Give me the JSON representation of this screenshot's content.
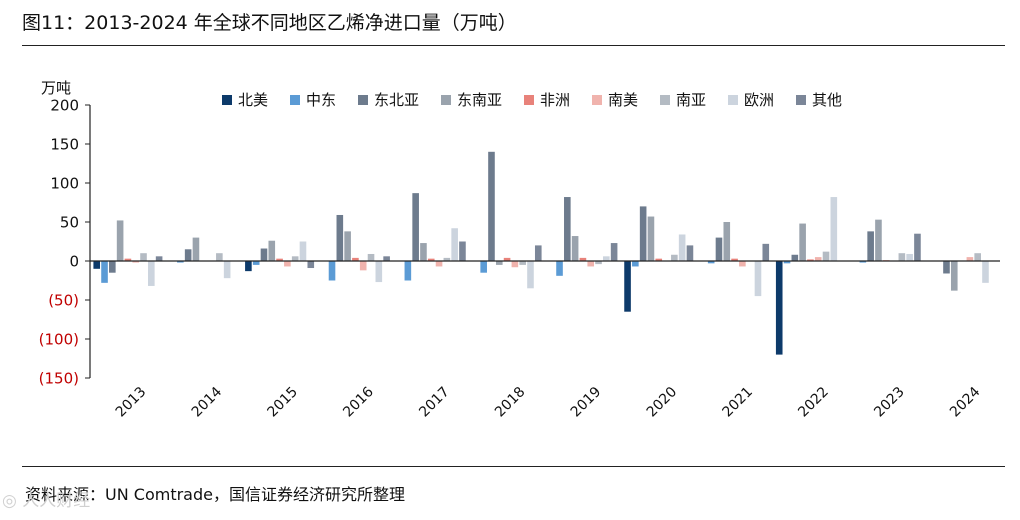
{
  "figure": {
    "title": "图11：2013-2024 年全球不同地区乙烯净进口量（万吨）",
    "source": "资料来源：UN Comtrade，国信证券经济研究所整理",
    "watermark": "◎ 人人财经"
  },
  "chart_data": {
    "type": "bar",
    "title": "2013-2024 年全球不同地区乙烯净进口量（万吨）",
    "ylabel": "万吨",
    "xlabel": "",
    "ylim": [
      -150,
      200
    ],
    "yticks": [
      200,
      150,
      100,
      50,
      0,
      -50,
      -100,
      -150
    ],
    "ytick_labels": [
      "200",
      "150",
      "100",
      "50",
      "0",
      "(50)",
      "(100)",
      "(150)"
    ],
    "negative_label_color": "#c00000",
    "grid": false,
    "legend_position": "top",
    "categories": [
      "2013",
      "2014",
      "2015",
      "2016",
      "2017",
      "2018",
      "2019",
      "2020",
      "2021",
      "2022",
      "2023",
      "2024"
    ],
    "series": [
      {
        "name": "北美",
        "color": "#0d3a6a",
        "values": [
          -10,
          0,
          -13,
          0,
          0,
          0,
          0,
          -65,
          0,
          -120,
          0,
          0
        ]
      },
      {
        "name": "中东",
        "color": "#5b9bd5",
        "values": [
          -28,
          -2,
          -5,
          -25,
          -25,
          -15,
          -19,
          -7,
          -3,
          -3,
          -2,
          0
        ]
      },
      {
        "name": "东北亚",
        "color": "#6d7b8d",
        "values": [
          -15,
          15,
          16,
          59,
          87,
          140,
          82,
          70,
          30,
          8,
          38,
          -16
        ]
      },
      {
        "name": "东南亚",
        "color": "#9aa3ad",
        "values": [
          52,
          30,
          26,
          38,
          23,
          -5,
          32,
          57,
          50,
          48,
          53,
          -38
        ]
      },
      {
        "name": "非洲",
        "color": "#e8827a",
        "values": [
          3,
          0,
          3,
          4,
          3,
          4,
          4,
          3,
          3,
          2,
          1,
          0
        ]
      },
      {
        "name": "南美",
        "color": "#f0b3ad",
        "values": [
          -2,
          0,
          -7,
          -12,
          -7,
          -8,
          -7,
          0,
          -7,
          5,
          0,
          5
        ]
      },
      {
        "name": "南亚",
        "color": "#b4bbc3",
        "values": [
          10,
          10,
          6,
          9,
          4,
          -5,
          -4,
          8,
          0,
          12,
          10,
          10
        ]
      },
      {
        "name": "欧洲",
        "color": "#ccd4de",
        "values": [
          -32,
          -22,
          25,
          -27,
          42,
          -35,
          6,
          34,
          -45,
          82,
          9,
          -28
        ]
      },
      {
        "name": "其他",
        "color": "#7b8698",
        "values": [
          6,
          0,
          -9,
          6,
          25,
          20,
          23,
          20,
          22,
          0,
          35,
          0
        ]
      }
    ]
  }
}
